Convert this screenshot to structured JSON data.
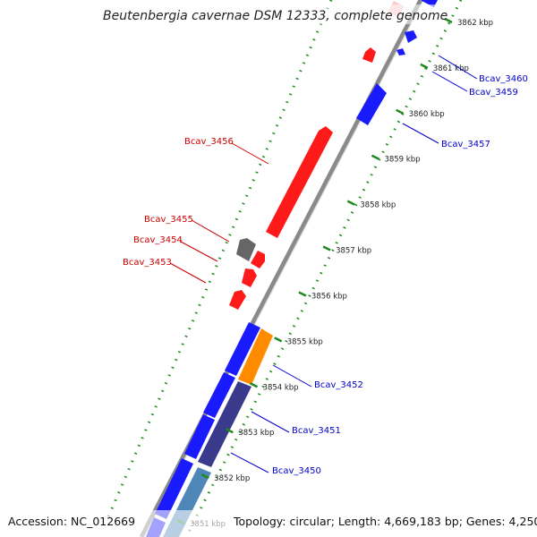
{
  "title": "Beutenbergia cavernae DSM 12333, complete genome",
  "footer": {
    "accession": "Accession: NC_012669",
    "summary": "Topology: circular; Length: 4,669,183 bp; Genes: 4,250"
  },
  "colors": {
    "forward_gene": "#ff1a1a",
    "reverse_gene": "#1a1aff",
    "other_gene": "#666666",
    "orange_gene": "#ff8c00",
    "dark_blue_feature": "#3a3a8c",
    "steel_blue_feature": "#4f86b8",
    "backbone": "#8a8a8a",
    "tick_green": "#1e8a1e",
    "forward_label": "#cc0000",
    "reverse_label": "#0000cc"
  },
  "ticks": [
    {
      "label": "3851 kbp",
      "kbp": 3851
    },
    {
      "label": "3852 kbp",
      "kbp": 3852
    },
    {
      "label": "3853 kbp",
      "kbp": 3853
    },
    {
      "label": "3854 kbp",
      "kbp": 3854
    },
    {
      "label": "3855 kbp",
      "kbp": 3855
    },
    {
      "label": "3856 kbp",
      "kbp": 3856
    },
    {
      "label": "3857 kbp",
      "kbp": 3857
    },
    {
      "label": "3858 kbp",
      "kbp": 3858
    },
    {
      "label": "3859 kbp",
      "kbp": 3859
    },
    {
      "label": "3860 kbp",
      "kbp": 3860
    },
    {
      "label": "3861 kbp",
      "kbp": 3861
    },
    {
      "label": "3862 kbp",
      "kbp": 3862
    }
  ],
  "genes": [
    {
      "name": "Bcav_3460",
      "strand": "reverse",
      "color": "reverse_gene"
    },
    {
      "name": "Bcav_3459",
      "strand": "reverse",
      "color": "reverse_gene"
    },
    {
      "name": "Bcav_3457",
      "strand": "reverse",
      "color": "reverse_gene"
    },
    {
      "name": "Bcav_3456",
      "strand": "forward",
      "color": "forward_gene"
    },
    {
      "name": "Bcav_3455",
      "strand": "forward",
      "color": "other_gene"
    },
    {
      "name": "Bcav_3454",
      "strand": "forward",
      "color": "forward_gene"
    },
    {
      "name": "Bcav_3453",
      "strand": "forward",
      "color": "forward_gene"
    },
    {
      "name": "Bcav_3452",
      "strand": "reverse",
      "color": "orange_gene"
    },
    {
      "name": "Bcav_3451",
      "strand": "reverse",
      "color": "dark_blue_feature"
    },
    {
      "name": "Bcav_3450",
      "strand": "reverse",
      "color": "steel_blue_feature"
    }
  ]
}
